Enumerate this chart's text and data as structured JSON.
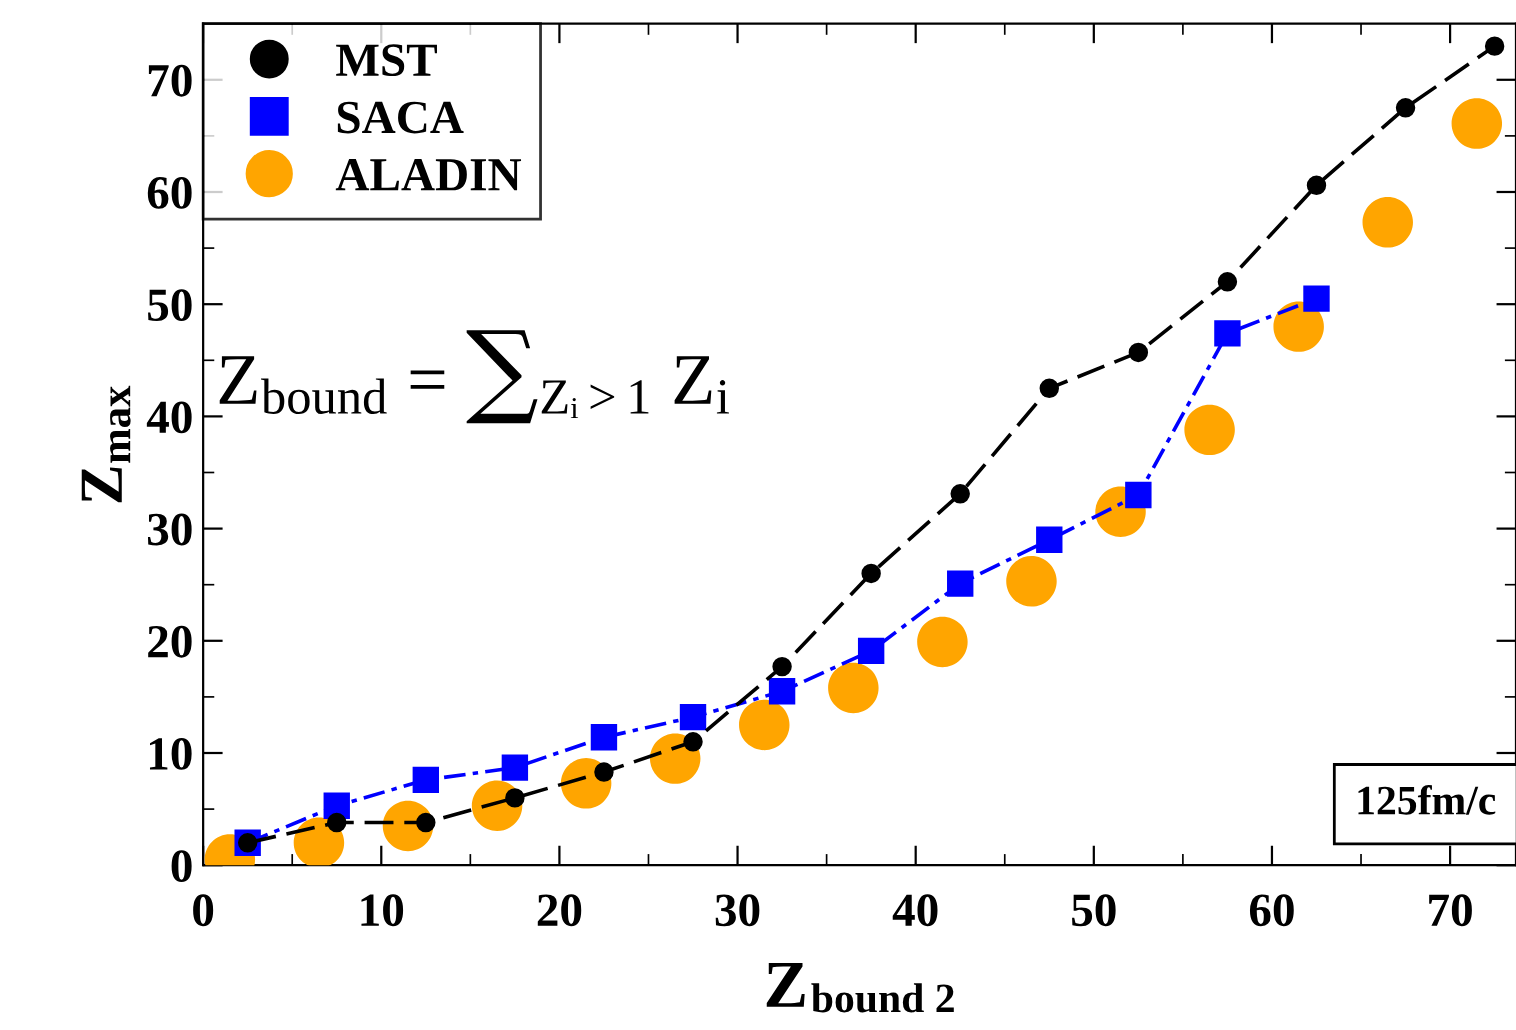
{
  "chart_data": {
    "type": "line",
    "xlabel": "Z$_{bound 2}$",
    "ylabel": "Z$_{max}$",
    "xlim": [
      0,
      73.7
    ],
    "ylim": [
      0,
      75
    ],
    "xticks": [
      0,
      10,
      20,
      30,
      40,
      50,
      60,
      70
    ],
    "yticks": [
      0,
      10,
      20,
      30,
      40,
      50,
      60,
      70
    ],
    "grid": false,
    "legend": "top left",
    "series": [
      {
        "name": "MST",
        "color": "#000000",
        "marker": "circle",
        "line_style": "dashed",
        "x": [
          2.5,
          7.5,
          12.5,
          17.5,
          22.5,
          27.5,
          32.5,
          37.5,
          42.5,
          47.5,
          52.5,
          57.5,
          62.5,
          67.5,
          72.5
        ],
        "values": [
          2.0,
          3.8,
          3.8,
          6.0,
          8.3,
          11.0,
          17.7,
          26.0,
          33.1,
          42.5,
          45.7,
          52.0,
          60.6,
          67.5,
          73.0
        ]
      },
      {
        "name": "SACA",
        "color": "#0000ff",
        "marker": "square",
        "line_style": "dashdot",
        "x": [
          2.5,
          7.5,
          12.5,
          17.5,
          22.5,
          27.5,
          32.5,
          37.5,
          42.5,
          47.5,
          52.5,
          57.5,
          62.5
        ],
        "values": [
          2.0,
          5.3,
          7.6,
          8.7,
          11.4,
          13.2,
          15.5,
          19.1,
          25.1,
          29.0,
          33.0,
          47.4,
          50.5
        ]
      },
      {
        "name": "ALADIN",
        "type": "scatter",
        "color": "#ffa500",
        "marker": "circle",
        "x": [
          1.5,
          6.5,
          11.5,
          16.5,
          21.5,
          26.5,
          31.5,
          36.5,
          41.5,
          46.5,
          51.5,
          56.5,
          61.5,
          66.5,
          71.5
        ],
        "values": [
          0.5,
          2.0,
          3.5,
          5.3,
          7.3,
          9.5,
          12.5,
          15.8,
          19.9,
          25.3,
          31.5,
          38.8,
          48.0,
          57.3,
          66.1
        ]
      }
    ],
    "annotations": [
      "Z$_{bound}$ = ∑$_{Zᵢ>1}$ Z$_{i}$",
      "125fm/c"
    ]
  }
}
